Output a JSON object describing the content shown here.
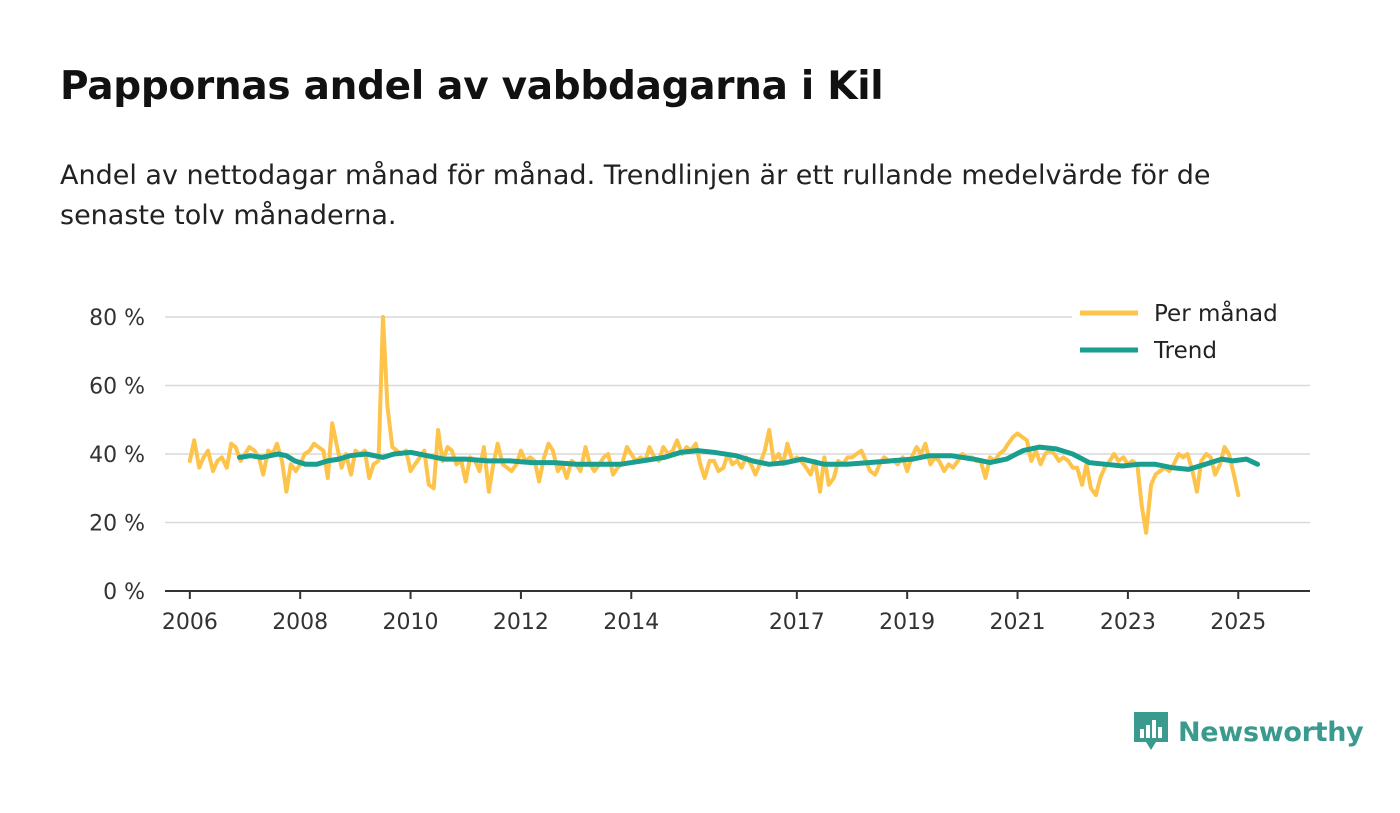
{
  "header": {
    "title": "Pappornas andel av vabbdagarna i Kil",
    "subtitle": "Andel av nettodagar månad för månad. Trendlinjen är ett rullande medelvärde för de senaste tolv månaderna."
  },
  "brand": {
    "name": "Newsworthy",
    "icon": "newsworthy-logo-icon"
  },
  "colors": {
    "monthly": "#fdc34a",
    "trend": "#1a9e8f",
    "grid": "#d9d9d9",
    "axis": "#333333"
  },
  "chart_data": {
    "type": "line",
    "title": "Pappornas andel av vabbdagarna i Kil",
    "xlabel": "",
    "ylabel": "",
    "xlim": [
      2005.55,
      2026.3
    ],
    "ylim": [
      0,
      80
    ],
    "y_ticks": [
      0,
      20,
      40,
      60,
      80
    ],
    "y_tick_labels": [
      "0 %",
      "20 %",
      "40 %",
      "60 %",
      "80 %"
    ],
    "x_ticks": [
      2006,
      2008,
      2010,
      2012,
      2014,
      2017,
      2019,
      2021,
      2023,
      2025
    ],
    "x_tick_labels": [
      "2006",
      "2008",
      "2010",
      "2012",
      "2014",
      "2017",
      "2019",
      "2021",
      "2023",
      "2025"
    ],
    "grid": true,
    "legend_position": "top-right",
    "series": [
      {
        "name": "Per månad",
        "points": [
          [
            2006.0,
            38
          ],
          [
            2006.08,
            44
          ],
          [
            2006.17,
            36
          ],
          [
            2006.25,
            39
          ],
          [
            2006.33,
            41
          ],
          [
            2006.42,
            35
          ],
          [
            2006.5,
            38
          ],
          [
            2006.58,
            39
          ],
          [
            2006.67,
            36
          ],
          [
            2006.75,
            43
          ],
          [
            2006.83,
            42
          ],
          [
            2006.92,
            38
          ],
          [
            2007.0,
            40
          ],
          [
            2007.08,
            42
          ],
          [
            2007.17,
            41
          ],
          [
            2007.25,
            39
          ],
          [
            2007.33,
            34
          ],
          [
            2007.42,
            41
          ],
          [
            2007.5,
            40
          ],
          [
            2007.58,
            43
          ],
          [
            2007.67,
            38
          ],
          [
            2007.75,
            29
          ],
          [
            2007.83,
            37
          ],
          [
            2007.92,
            35
          ],
          [
            2008.0,
            37
          ],
          [
            2008.08,
            40
          ],
          [
            2008.17,
            41
          ],
          [
            2008.25,
            43
          ],
          [
            2008.33,
            42
          ],
          [
            2008.42,
            41
          ],
          [
            2008.5,
            33
          ],
          [
            2008.58,
            49
          ],
          [
            2008.67,
            42
          ],
          [
            2008.75,
            36
          ],
          [
            2008.83,
            40
          ],
          [
            2008.92,
            34
          ],
          [
            2009.0,
            41
          ],
          [
            2009.08,
            40
          ],
          [
            2009.17,
            41
          ],
          [
            2009.25,
            33
          ],
          [
            2009.33,
            37
          ],
          [
            2009.42,
            38
          ],
          [
            2009.5,
            80
          ],
          [
            2009.58,
            54
          ],
          [
            2009.67,
            42
          ],
          [
            2009.75,
            41
          ],
          [
            2009.83,
            40
          ],
          [
            2009.92,
            41
          ],
          [
            2010.0,
            35
          ],
          [
            2010.08,
            37
          ],
          [
            2010.17,
            39
          ],
          [
            2010.25,
            41
          ],
          [
            2010.33,
            31
          ],
          [
            2010.42,
            30
          ],
          [
            2010.5,
            47
          ],
          [
            2010.58,
            38
          ],
          [
            2010.67,
            42
          ],
          [
            2010.75,
            41
          ],
          [
            2010.83,
            37
          ],
          [
            2010.92,
            38
          ],
          [
            2011.0,
            32
          ],
          [
            2011.08,
            39
          ],
          [
            2011.17,
            38
          ],
          [
            2011.25,
            35
          ],
          [
            2011.33,
            42
          ],
          [
            2011.42,
            29
          ],
          [
            2011.5,
            37
          ],
          [
            2011.58,
            43
          ],
          [
            2011.67,
            37
          ],
          [
            2011.75,
            36
          ],
          [
            2011.83,
            35
          ],
          [
            2011.92,
            37
          ],
          [
            2012.0,
            41
          ],
          [
            2012.08,
            38
          ],
          [
            2012.17,
            39
          ],
          [
            2012.25,
            38
          ],
          [
            2012.33,
            32
          ],
          [
            2012.42,
            39
          ],
          [
            2012.5,
            43
          ],
          [
            2012.58,
            41
          ],
          [
            2012.67,
            35
          ],
          [
            2012.75,
            37
          ],
          [
            2012.83,
            33
          ],
          [
            2012.92,
            38
          ],
          [
            2013.0,
            37
          ],
          [
            2013.08,
            35
          ],
          [
            2013.17,
            42
          ],
          [
            2013.25,
            37
          ],
          [
            2013.33,
            35
          ],
          [
            2013.42,
            37
          ],
          [
            2013.5,
            39
          ],
          [
            2013.58,
            40
          ],
          [
            2013.67,
            34
          ],
          [
            2013.75,
            36
          ],
          [
            2013.83,
            37
          ],
          [
            2013.92,
            42
          ],
          [
            2014.0,
            40
          ],
          [
            2014.08,
            38
          ],
          [
            2014.17,
            39
          ],
          [
            2014.25,
            38
          ],
          [
            2014.33,
            42
          ],
          [
            2014.42,
            39
          ],
          [
            2014.5,
            38
          ],
          [
            2014.58,
            42
          ],
          [
            2014.67,
            40
          ],
          [
            2014.75,
            41
          ],
          [
            2014.83,
            44
          ],
          [
            2014.92,
            40
          ],
          [
            2015.0,
            42
          ],
          [
            2015.08,
            41
          ],
          [
            2015.17,
            43
          ],
          [
            2015.25,
            37
          ],
          [
            2015.33,
            33
          ],
          [
            2015.42,
            38
          ],
          [
            2015.5,
            38
          ],
          [
            2015.58,
            35
          ],
          [
            2015.67,
            36
          ],
          [
            2015.75,
            40
          ],
          [
            2015.83,
            37
          ],
          [
            2015.92,
            38
          ],
          [
            2016.0,
            36
          ],
          [
            2016.08,
            39
          ],
          [
            2016.17,
            37
          ],
          [
            2016.25,
            34
          ],
          [
            2016.33,
            37
          ],
          [
            2016.42,
            41
          ],
          [
            2016.5,
            47
          ],
          [
            2016.58,
            38
          ],
          [
            2016.67,
            40
          ],
          [
            2016.75,
            37
          ],
          [
            2016.83,
            43
          ],
          [
            2016.92,
            38
          ],
          [
            2017.0,
            39
          ],
          [
            2017.08,
            38
          ],
          [
            2017.17,
            36
          ],
          [
            2017.25,
            34
          ],
          [
            2017.33,
            38
          ],
          [
            2017.42,
            29
          ],
          [
            2017.5,
            39
          ],
          [
            2017.58,
            31
          ],
          [
            2017.67,
            33
          ],
          [
            2017.75,
            38
          ],
          [
            2017.83,
            37
          ],
          [
            2017.92,
            39
          ],
          [
            2018.0,
            39
          ],
          [
            2018.08,
            40
          ],
          [
            2018.17,
            41
          ],
          [
            2018.25,
            38
          ],
          [
            2018.33,
            35
          ],
          [
            2018.42,
            34
          ],
          [
            2018.5,
            37
          ],
          [
            2018.58,
            39
          ],
          [
            2018.67,
            38
          ],
          [
            2018.75,
            38
          ],
          [
            2018.83,
            37
          ],
          [
            2018.92,
            39
          ],
          [
            2019.0,
            35
          ],
          [
            2019.08,
            39
          ],
          [
            2019.17,
            42
          ],
          [
            2019.25,
            40
          ],
          [
            2019.33,
            43
          ],
          [
            2019.42,
            37
          ],
          [
            2019.5,
            39
          ],
          [
            2019.58,
            38
          ],
          [
            2019.67,
            35
          ],
          [
            2019.75,
            37
          ],
          [
            2019.83,
            36
          ],
          [
            2019.92,
            38
          ],
          [
            2020.0,
            40
          ],
          [
            2020.08,
            39
          ],
          [
            2020.17,
            39
          ],
          [
            2020.25,
            38
          ],
          [
            2020.33,
            38
          ],
          [
            2020.42,
            33
          ],
          [
            2020.5,
            39
          ],
          [
            2020.58,
            38
          ],
          [
            2020.67,
            40
          ],
          [
            2020.75,
            41
          ],
          [
            2020.83,
            43
          ],
          [
            2020.92,
            45
          ],
          [
            2021.0,
            46
          ],
          [
            2021.08,
            45
          ],
          [
            2021.17,
            44
          ],
          [
            2021.25,
            38
          ],
          [
            2021.33,
            41
          ],
          [
            2021.42,
            37
          ],
          [
            2021.5,
            40
          ],
          [
            2021.58,
            41
          ],
          [
            2021.67,
            40
          ],
          [
            2021.75,
            38
          ],
          [
            2021.83,
            39
          ],
          [
            2021.92,
            38
          ],
          [
            2022.0,
            36
          ],
          [
            2022.08,
            36
          ],
          [
            2022.17,
            31
          ],
          [
            2022.25,
            37
          ],
          [
            2022.33,
            30
          ],
          [
            2022.42,
            28
          ],
          [
            2022.5,
            33
          ],
          [
            2022.58,
            36
          ],
          [
            2022.67,
            38
          ],
          [
            2022.75,
            40
          ],
          [
            2022.83,
            38
          ],
          [
            2022.92,
            39
          ],
          [
            2023.0,
            37
          ],
          [
            2023.08,
            38
          ],
          [
            2023.17,
            37
          ],
          [
            2023.25,
            25
          ],
          [
            2023.33,
            17
          ],
          [
            2023.42,
            31
          ],
          [
            2023.5,
            34
          ],
          [
            2023.58,
            35
          ],
          [
            2023.67,
            36
          ],
          [
            2023.75,
            35
          ],
          [
            2023.83,
            37
          ],
          [
            2023.92,
            40
          ],
          [
            2024.0,
            39
          ],
          [
            2024.08,
            40
          ],
          [
            2024.17,
            35
          ],
          [
            2024.25,
            29
          ],
          [
            2024.33,
            38
          ],
          [
            2024.42,
            40
          ],
          [
            2024.5,
            39
          ],
          [
            2024.58,
            34
          ],
          [
            2024.67,
            37
          ],
          [
            2024.75,
            42
          ],
          [
            2024.83,
            40
          ],
          [
            2024.92,
            34
          ],
          [
            2025.0,
            28
          ]
        ]
      },
      {
        "name": "Trend",
        "points": [
          [
            2006.9,
            39
          ],
          [
            2007.1,
            39.5
          ],
          [
            2007.3,
            39
          ],
          [
            2007.6,
            40
          ],
          [
            2007.75,
            39.5
          ],
          [
            2007.9,
            38
          ],
          [
            2008.1,
            37
          ],
          [
            2008.3,
            37
          ],
          [
            2008.5,
            38
          ],
          [
            2008.7,
            38.5
          ],
          [
            2008.9,
            39.5
          ],
          [
            2009.2,
            40
          ],
          [
            2009.5,
            39
          ],
          [
            2009.7,
            40
          ],
          [
            2010.0,
            40.5
          ],
          [
            2010.3,
            39.5
          ],
          [
            2010.6,
            38.5
          ],
          [
            2011.0,
            38.5
          ],
          [
            2011.4,
            38
          ],
          [
            2011.8,
            38
          ],
          [
            2012.2,
            37.5
          ],
          [
            2012.6,
            37.5
          ],
          [
            2013.0,
            37
          ],
          [
            2013.4,
            37
          ],
          [
            2013.8,
            37
          ],
          [
            2014.2,
            38
          ],
          [
            2014.6,
            39
          ],
          [
            2014.9,
            40.5
          ],
          [
            2015.2,
            41
          ],
          [
            2015.5,
            40.5
          ],
          [
            2015.9,
            39.5
          ],
          [
            2016.2,
            38
          ],
          [
            2016.5,
            37
          ],
          [
            2016.8,
            37.5
          ],
          [
            2017.1,
            38.5
          ],
          [
            2017.5,
            37
          ],
          [
            2017.9,
            37
          ],
          [
            2018.3,
            37.5
          ],
          [
            2018.7,
            38
          ],
          [
            2019.1,
            38.5
          ],
          [
            2019.4,
            39.5
          ],
          [
            2019.8,
            39.5
          ],
          [
            2020.2,
            38.5
          ],
          [
            2020.5,
            37.5
          ],
          [
            2020.8,
            38.5
          ],
          [
            2021.1,
            41
          ],
          [
            2021.4,
            42
          ],
          [
            2021.7,
            41.5
          ],
          [
            2022.0,
            40
          ],
          [
            2022.3,
            37.5
          ],
          [
            2022.6,
            37
          ],
          [
            2022.9,
            36.5
          ],
          [
            2023.2,
            37
          ],
          [
            2023.5,
            37
          ],
          [
            2023.8,
            36
          ],
          [
            2024.1,
            35.5
          ],
          [
            2024.4,
            37
          ],
          [
            2024.7,
            38.5
          ],
          [
            2024.9,
            38
          ],
          [
            2025.15,
            38.5
          ],
          [
            2025.35,
            37
          ]
        ]
      }
    ]
  }
}
